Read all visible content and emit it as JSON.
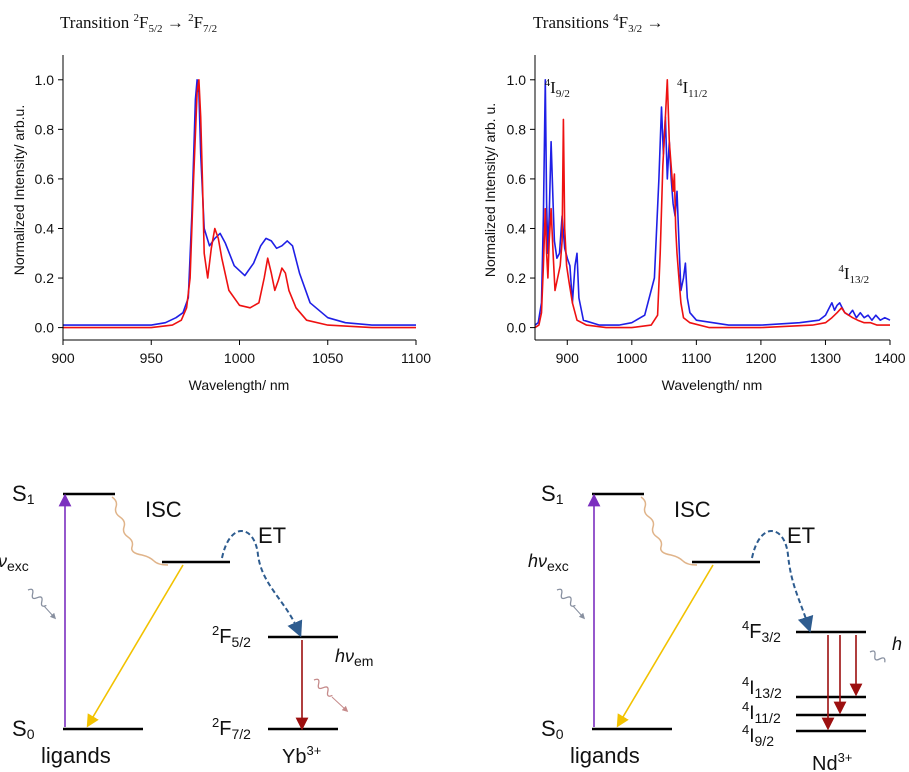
{
  "chart_data": [
    {
      "type": "line",
      "title": "Transition ²F5/2 → ²F7/2",
      "title_parts": {
        "prefix": "Transition ",
        "sup1": "2",
        "base1": "F",
        "sub1": "5/2",
        "arrow": " → ",
        "sup2": "2",
        "base2": "F",
        "sub2": "7/2"
      },
      "xlabel": "Wavelength/ nm",
      "ylabel": "Normalized Intensity/ arb.u.",
      "xlim": [
        900,
        1100
      ],
      "ylim": [
        -0.05,
        1.1
      ],
      "xticks": [
        900,
        950,
        1000,
        1050,
        1100
      ],
      "yticks": [
        0.0,
        0.2,
        0.4,
        0.6,
        0.8,
        1.0
      ],
      "ytick_labels": [
        "0.0",
        "0.2",
        "0.4",
        "0.6",
        "0.8",
        "1.0"
      ],
      "grid": false,
      "series": [
        {
          "color": "#1f1fe6",
          "x": [
            900,
            930,
            950,
            958,
            964,
            968,
            971,
            973,
            975,
            976,
            977,
            978,
            980,
            983,
            986,
            989,
            992,
            997,
            1003,
            1008,
            1012,
            1015,
            1018,
            1021,
            1024,
            1027,
            1030,
            1034,
            1040,
            1050,
            1060,
            1075,
            1100
          ],
          "y": [
            0.01,
            0.01,
            0.01,
            0.02,
            0.04,
            0.06,
            0.12,
            0.45,
            0.92,
            1.0,
            0.95,
            0.7,
            0.4,
            0.33,
            0.36,
            0.38,
            0.34,
            0.25,
            0.21,
            0.26,
            0.33,
            0.36,
            0.35,
            0.32,
            0.33,
            0.35,
            0.33,
            0.22,
            0.1,
            0.04,
            0.02,
            0.01,
            0.01
          ]
        },
        {
          "color": "#ee1111",
          "x": [
            900,
            950,
            962,
            967,
            970,
            972,
            974,
            976,
            977,
            978,
            979,
            980,
            982,
            984,
            986,
            988,
            990,
            994,
            1000,
            1006,
            1011,
            1014,
            1016,
            1018,
            1020,
            1022,
            1024,
            1026,
            1028,
            1032,
            1038,
            1050,
            1075,
            1100
          ],
          "y": [
            0.0,
            0.0,
            0.01,
            0.03,
            0.08,
            0.2,
            0.6,
            0.95,
            1.0,
            0.85,
            0.6,
            0.3,
            0.2,
            0.32,
            0.4,
            0.36,
            0.28,
            0.15,
            0.09,
            0.08,
            0.1,
            0.2,
            0.28,
            0.22,
            0.15,
            0.19,
            0.24,
            0.22,
            0.15,
            0.08,
            0.03,
            0.01,
            0.0,
            0.0
          ]
        }
      ]
    },
    {
      "type": "line",
      "title": "Transitions ⁴F3/2 →",
      "title_parts": {
        "prefix": "Transitions ",
        "sup1": "4",
        "base1": "F",
        "sub1": "3/2",
        "arrow": " →"
      },
      "xlabel": "Wavelength/ nm",
      "ylabel": "Normalized Intensity/ arb. u.",
      "xlim": [
        850,
        1400
      ],
      "ylim": [
        -0.05,
        1.1
      ],
      "xticks": [
        900,
        1000,
        1100,
        1200,
        1300,
        1400
      ],
      "yticks": [
        0.0,
        0.2,
        0.4,
        0.6,
        0.8,
        1.0
      ],
      "ytick_labels": [
        "0.0",
        "0.2",
        "0.4",
        "0.6",
        "0.8",
        "1.0"
      ],
      "grid": false,
      "annotations": [
        {
          "sup": "4",
          "base": "I",
          "sub": "9/2",
          "x": 865,
          "y": 0.97
        },
        {
          "sup": "4",
          "base": "I",
          "sub": "11/2",
          "x": 1070,
          "y": 0.97
        },
        {
          "sup": "4",
          "base": "I",
          "sub": "13/2",
          "x": 1320,
          "y": 0.22
        }
      ],
      "series": [
        {
          "color": "#1f1fe6",
          "x": [
            850,
            855,
            860,
            863,
            866,
            868,
            870,
            872,
            875,
            878,
            880,
            884,
            888,
            892,
            896,
            900,
            904,
            908,
            912,
            915,
            918,
            925,
            950,
            980,
            1000,
            1020,
            1035,
            1042,
            1046,
            1049,
            1052,
            1055,
            1058,
            1061,
            1064,
            1067,
            1070,
            1073,
            1076,
            1080,
            1083,
            1086,
            1090,
            1100,
            1150,
            1200,
            1260,
            1290,
            1300,
            1306,
            1310,
            1314,
            1318,
            1322,
            1326,
            1330,
            1336,
            1342,
            1348,
            1354,
            1360,
            1366,
            1372,
            1378,
            1385,
            1392,
            1400
          ],
          "y": [
            0.01,
            0.02,
            0.1,
            0.45,
            1.0,
            0.5,
            0.3,
            0.45,
            0.75,
            0.5,
            0.35,
            0.28,
            0.3,
            0.45,
            0.32,
            0.28,
            0.25,
            0.1,
            0.25,
            0.3,
            0.12,
            0.03,
            0.01,
            0.01,
            0.02,
            0.05,
            0.2,
            0.6,
            0.89,
            0.7,
            0.85,
            0.6,
            0.75,
            0.6,
            0.5,
            0.45,
            0.55,
            0.35,
            0.15,
            0.2,
            0.26,
            0.12,
            0.06,
            0.03,
            0.01,
            0.01,
            0.02,
            0.03,
            0.05,
            0.08,
            0.1,
            0.07,
            0.09,
            0.1,
            0.08,
            0.06,
            0.05,
            0.07,
            0.04,
            0.06,
            0.04,
            0.05,
            0.03,
            0.05,
            0.03,
            0.04,
            0.03
          ]
        },
        {
          "color": "#ee1111",
          "x": [
            850,
            856,
            860,
            863,
            866,
            868,
            870,
            872,
            875,
            878,
            881,
            885,
            889,
            892,
            894,
            896,
            899,
            903,
            908,
            915,
            930,
            960,
            1000,
            1030,
            1040,
            1044,
            1048,
            1052,
            1055,
            1058,
            1061,
            1064,
            1066,
            1068,
            1070,
            1073,
            1076,
            1080,
            1090,
            1120,
            1200,
            1280,
            1300,
            1310,
            1318,
            1325,
            1330,
            1336,
            1342,
            1350,
            1360,
            1370,
            1380,
            1390,
            1400
          ],
          "y": [
            0.0,
            0.01,
            0.06,
            0.25,
            0.48,
            0.3,
            0.2,
            0.35,
            0.48,
            0.3,
            0.15,
            0.2,
            0.25,
            0.35,
            0.84,
            0.4,
            0.25,
            0.18,
            0.1,
            0.03,
            0.01,
            0.0,
            0.0,
            0.01,
            0.05,
            0.3,
            0.65,
            0.85,
            1.0,
            0.75,
            0.65,
            0.55,
            0.62,
            0.4,
            0.3,
            0.2,
            0.1,
            0.04,
            0.02,
            0.0,
            0.0,
            0.01,
            0.02,
            0.04,
            0.06,
            0.08,
            0.06,
            0.05,
            0.04,
            0.03,
            0.02,
            0.02,
            0.01,
            0.01,
            0.01
          ]
        }
      ]
    }
  ],
  "diagrams": [
    {
      "s1": {
        "base": "S",
        "sub": "1"
      },
      "s0": {
        "base": "S",
        "sub": "0"
      },
      "isc": "ISC",
      "et": "ET",
      "exc": {
        "sym": "ν",
        "sub": "exc"
      },
      "em": {
        "sym": "hν",
        "sub": "em"
      },
      "levels": [
        {
          "sup": "2",
          "base": "F",
          "sub": "5/2"
        },
        {
          "sup": "2",
          "base": "F",
          "sub": "7/2"
        }
      ],
      "ligands": "ligands",
      "ion": {
        "base": "Yb",
        "sup": "3+"
      }
    },
    {
      "s1": {
        "base": "S",
        "sub": "1"
      },
      "s0": {
        "base": "S",
        "sub": "0"
      },
      "isc": "ISC",
      "et": "ET",
      "exc": {
        "sym": "hν",
        "sub": "exc"
      },
      "em": {
        "sym": "h"
      },
      "levels": [
        {
          "sup": "4",
          "base": "F",
          "sub": "3/2"
        },
        {
          "sup": "4",
          "base": "I",
          "sub": "13/2"
        },
        {
          "sup": "4",
          "base": "I",
          "sub": "11/2"
        },
        {
          "sup": "4",
          "base": "I",
          "sub": "9/2"
        }
      ],
      "ligands": "ligands",
      "ion": {
        "base": "Nd",
        "sup": "3+"
      }
    }
  ],
  "colors": {
    "blue_series": "#1f1fe6",
    "red_series": "#ee1111",
    "excitation_arrow": "#7b2fbf",
    "isc_wave": "#e0b48a",
    "et_arrow": "#2e5c8f",
    "decay_arrow": "#f2c200",
    "emission_arrow": "#9c0f0f",
    "photon_wave_in": "#8890a0",
    "photon_wave_out": "#c58a8a"
  }
}
